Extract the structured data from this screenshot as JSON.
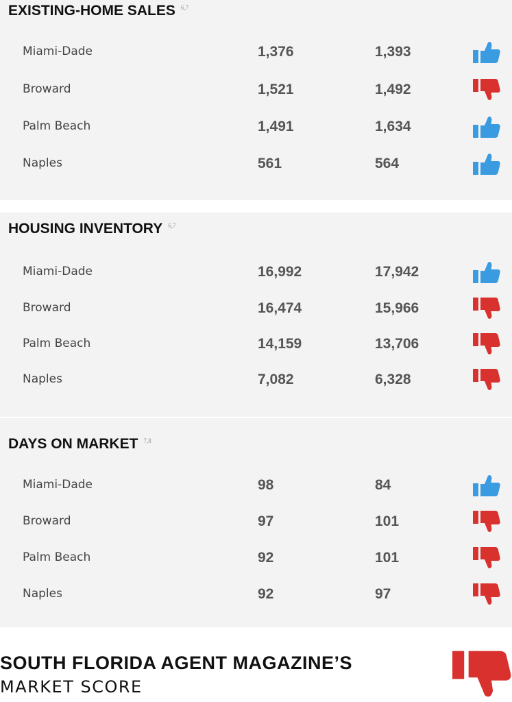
{
  "sections": [
    {
      "title": "EXISTING-HOME SALES",
      "note": "6,7",
      "rows": [
        {
          "name": "Miami-Dade",
          "values": [
            "1,376",
            "1,393"
          ],
          "thumb": "up"
        },
        {
          "name": "Broward",
          "values": [
            "1,521",
            "1,492"
          ],
          "thumb": "down"
        },
        {
          "name": "Palm Beach",
          "values": [
            "1,491",
            "1,634"
          ],
          "thumb": "up"
        },
        {
          "name": "Naples",
          "values": [
            "561",
            "564"
          ],
          "thumb": "up"
        }
      ]
    },
    {
      "title": "HOUSING INVENTORY",
      "note": "6,7",
      "rows": [
        {
          "name": "Miami-Dade",
          "values": [
            "16,992",
            "17,942"
          ],
          "thumb": "up"
        },
        {
          "name": "Broward",
          "values": [
            "16,474",
            "15,966"
          ],
          "thumb": "down"
        },
        {
          "name": "Palm Beach",
          "values": [
            "14,159",
            "13,706"
          ],
          "thumb": "down"
        },
        {
          "name": "Naples",
          "values": [
            "7,082",
            "6,328"
          ],
          "thumb": "down"
        }
      ]
    },
    {
      "title": "DAYS ON MARKET",
      "note": "7,8",
      "rows": [
        {
          "name": "Miami-Dade",
          "values": [
            "98",
            "84"
          ],
          "thumb": "up"
        },
        {
          "name": "Broward",
          "values": [
            "97",
            "101"
          ],
          "thumb": "down"
        },
        {
          "name": "Palm Beach",
          "values": [
            "92",
            "101"
          ],
          "thumb": "down"
        },
        {
          "name": "Naples",
          "values": [
            "92",
            "97"
          ],
          "thumb": "down"
        }
      ]
    }
  ],
  "footer": {
    "title": "SOUTH FLORIDA AGENT MAGAZINE’S",
    "subtitle": "MARKET SCORE",
    "thumb": "down"
  }
}
